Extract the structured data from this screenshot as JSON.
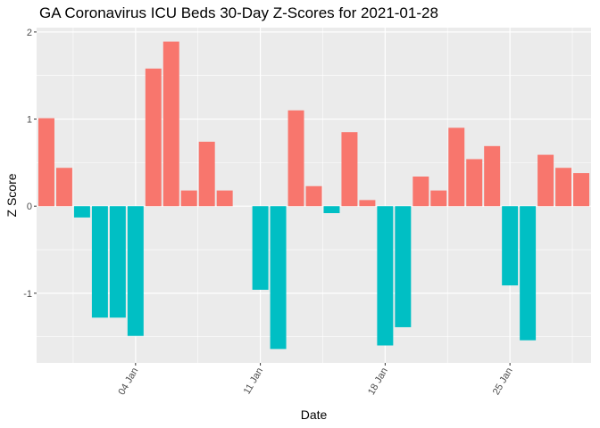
{
  "chart_data": {
    "type": "bar",
    "title": "GA Coronavirus ICU Beds 30-Day Z-Scores for 2021-01-28",
    "xlabel": "Date",
    "ylabel": "Z Score",
    "x_start": "2020-12-30",
    "values": [
      1.01,
      0.44,
      -0.13,
      -1.28,
      -1.28,
      -1.49,
      1.58,
      1.89,
      0.18,
      0.74,
      0.18,
      null,
      -0.96,
      -1.64,
      1.1,
      0.23,
      -0.08,
      0.85,
      0.07,
      -1.6,
      -1.39,
      0.34,
      0.18,
      0.9,
      0.54,
      0.69,
      -0.91,
      -1.54,
      0.59,
      0.44,
      0.38
    ],
    "ylim": [
      -1.8,
      2.05
    ],
    "yticks": [
      2,
      1,
      0,
      -1
    ],
    "ytick_labels": [
      "2",
      "1",
      "0",
      "-1"
    ],
    "xticks": [
      {
        "label": "04 Jan",
        "day_index": 5
      },
      {
        "label": "11 Jan",
        "day_index": 12
      },
      {
        "label": "18 Jan",
        "day_index": 19
      },
      {
        "label": "25 Jan",
        "day_index": 26
      }
    ],
    "grid": true,
    "legend": "none",
    "colors": {
      "positive": "#F8766D",
      "negative": "#00BFC4",
      "panel": "#EBEBEB",
      "grid": "#FFFFFF"
    }
  }
}
